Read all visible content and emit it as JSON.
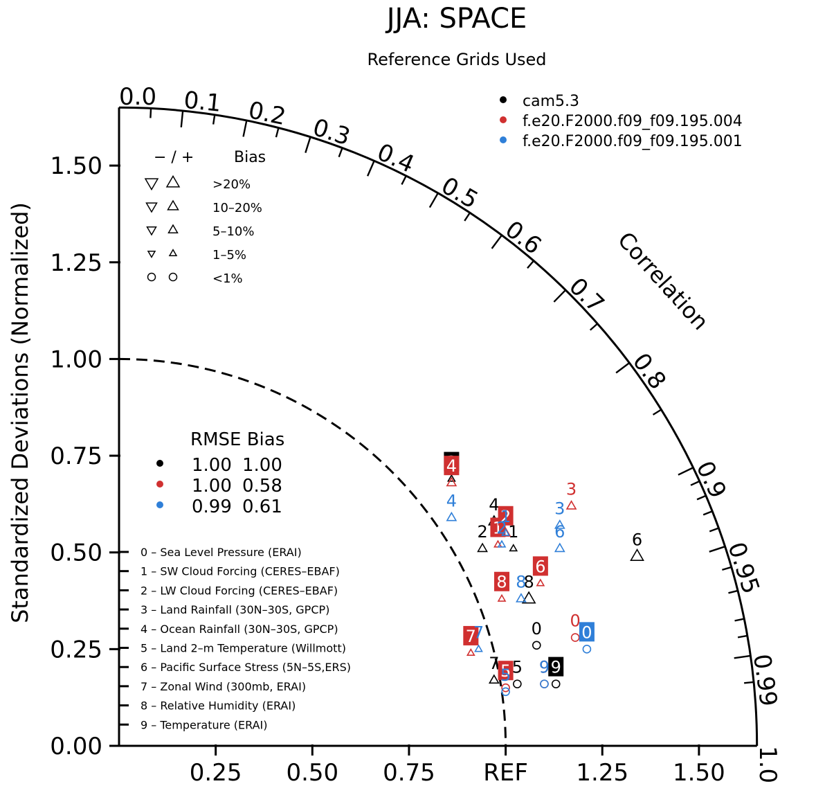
{
  "title": "JJA: SPACE",
  "subtitle": "Reference Grids Used",
  "colors": {
    "black": "#000000",
    "red": "#d03030",
    "blue": "#2f7fd8"
  },
  "chart_data": {
    "type": "scatter",
    "chart_kind": "taylor_diagram",
    "ylabel": "Standardized Deviations (Normalized)",
    "arc_label": "Correlation",
    "ref_label": "REF",
    "std_range": [
      0,
      1.65
    ],
    "y_ticks": [
      "0.00",
      "0.25",
      "0.50",
      "0.75",
      "1.00",
      "1.25",
      "1.50"
    ],
    "x_ticks": [
      "0.25",
      "0.50",
      "0.75",
      "REF",
      "1.25",
      "1.50"
    ],
    "correlation_ticks": [
      "0.0",
      "0.1",
      "0.2",
      "0.3",
      "0.4",
      "0.5",
      "0.6",
      "0.7",
      "0.8",
      "0.9",
      "0.95",
      "0.99",
      "1.0"
    ],
    "series": [
      {
        "name": "cam5.3",
        "color": "#000000",
        "rmse": "1.00",
        "bias": "1.00",
        "points": [
          {
            "id": "0",
            "x": 1.08,
            "y": 0.26,
            "bias_pct": "<1%",
            "marker": "circle"
          },
          {
            "id": "1",
            "x": 1.02,
            "y": 0.51,
            "bias_pct": "1-5%",
            "marker": "up"
          },
          {
            "id": "2",
            "x": 0.94,
            "y": 0.51,
            "bias_pct": "5-10%",
            "marker": "up"
          },
          {
            "id": "3",
            "x": 0.86,
            "y": 0.69,
            "bias_pct": "1-5%",
            "marker": "up",
            "boxed": true
          },
          {
            "id": "4",
            "x": 0.97,
            "y": 0.58,
            "bias_pct": "10-20%",
            "marker": "up"
          },
          {
            "id": "5",
            "x": 1.03,
            "y": 0.16,
            "bias_pct": "<1%",
            "marker": "circle"
          },
          {
            "id": "6",
            "x": 1.34,
            "y": 0.49,
            "bias_pct": ">20%",
            "marker": "up"
          },
          {
            "id": "7",
            "x": 0.97,
            "y": 0.17,
            "bias_pct": "5-10%",
            "marker": "up"
          },
          {
            "id": "8",
            "x": 1.06,
            "y": 0.38,
            "bias_pct": ">20%",
            "marker": "up"
          },
          {
            "id": "9",
            "x": 1.13,
            "y": 0.16,
            "bias_pct": "<1%",
            "marker": "circle",
            "boxed": true
          }
        ]
      },
      {
        "name": "f.e20.F2000.f09_f09.195.004",
        "color": "#d03030",
        "rmse": "1.00",
        "bias": "0.58",
        "points": [
          {
            "id": "0",
            "x": 1.18,
            "y": 0.28,
            "bias_pct": "<1%",
            "marker": "circle"
          },
          {
            "id": "1",
            "x": 0.98,
            "y": 0.52,
            "bias_pct": "1-5%",
            "marker": "up",
            "boxed": true
          },
          {
            "id": "2",
            "x": 1.0,
            "y": 0.55,
            "bias_pct": "5-10%",
            "marker": "up",
            "boxed": true
          },
          {
            "id": "3",
            "x": 1.17,
            "y": 0.62,
            "bias_pct": "5-10%",
            "marker": "up"
          },
          {
            "id": "4",
            "x": 0.86,
            "y": 0.68,
            "bias_pct": "5-10%",
            "marker": "up",
            "boxed": true
          },
          {
            "id": "5",
            "x": 1.0,
            "y": 0.15,
            "bias_pct": "<1%",
            "marker": "circle",
            "boxed": true
          },
          {
            "id": "6",
            "x": 1.09,
            "y": 0.42,
            "bias_pct": "1-5%",
            "marker": "up",
            "boxed": true
          },
          {
            "id": "7",
            "x": 0.91,
            "y": 0.24,
            "bias_pct": "1-5%",
            "marker": "up",
            "boxed": true
          },
          {
            "id": "8",
            "x": 0.99,
            "y": 0.38,
            "bias_pct": "1-5%",
            "marker": "up",
            "boxed": true
          },
          {
            "id": "9",
            "x": 1.1,
            "y": 0.16,
            "bias_pct": "<1%",
            "marker": "circle"
          }
        ]
      },
      {
        "name": "f.e20.F2000.f09_f09.195.001",
        "color": "#2f7fd8",
        "rmse": "0.99",
        "bias": "0.61",
        "points": [
          {
            "id": "0",
            "x": 1.21,
            "y": 0.25,
            "bias_pct": "<1%",
            "marker": "circle",
            "boxed": true
          },
          {
            "id": "1",
            "x": 1.0,
            "y": 0.55,
            "bias_pct": "1-5%",
            "marker": "up"
          },
          {
            "id": "2",
            "x": 0.99,
            "y": 0.52,
            "bias_pct": "1-5%",
            "marker": "up"
          },
          {
            "id": "3",
            "x": 1.14,
            "y": 0.57,
            "bias_pct": "5-10%",
            "marker": "up"
          },
          {
            "id": "4",
            "x": 0.86,
            "y": 0.59,
            "bias_pct": "5-10%",
            "marker": "up"
          },
          {
            "id": "5",
            "x": 1.0,
            "y": 0.14,
            "bias_pct": "<1%",
            "marker": "circle"
          },
          {
            "id": "6",
            "x": 1.14,
            "y": 0.51,
            "bias_pct": "5-10%",
            "marker": "up"
          },
          {
            "id": "7",
            "x": 0.93,
            "y": 0.25,
            "bias_pct": "1-5%",
            "marker": "up"
          },
          {
            "id": "8",
            "x": 1.04,
            "y": 0.38,
            "bias_pct": "5-10%",
            "marker": "up"
          },
          {
            "id": "9",
            "x": 1.1,
            "y": 0.16,
            "bias_pct": "<1%",
            "marker": "circle"
          }
        ]
      }
    ]
  },
  "bias_legend": {
    "header_signs": "− / +",
    "header_label": "Bias",
    "rows": [
      ">20%",
      "10–20%",
      "5–10%",
      "1–5%",
      "<1%"
    ]
  },
  "stats_legend": {
    "header": "RMSE Bias"
  },
  "variable_list": [
    "0 – Sea Level Pressure (ERAI)",
    "1 – SW Cloud Forcing (CERES–EBAF)",
    "2 – LW Cloud Forcing (CERES–EBAF)",
    "3 – Land Rainfall (30N–30S, GPCP)",
    "4 – Ocean Rainfall (30N–30S, GPCP)",
    "5 – Land 2–m Temperature (Willmott)",
    "6 – Pacific Surface Stress (5N–5S,ERS)",
    "7 – Zonal Wind (300mb, ERAI)",
    "8 – Relative Humidity (ERAI)",
    "9 – Temperature (ERAI)"
  ]
}
